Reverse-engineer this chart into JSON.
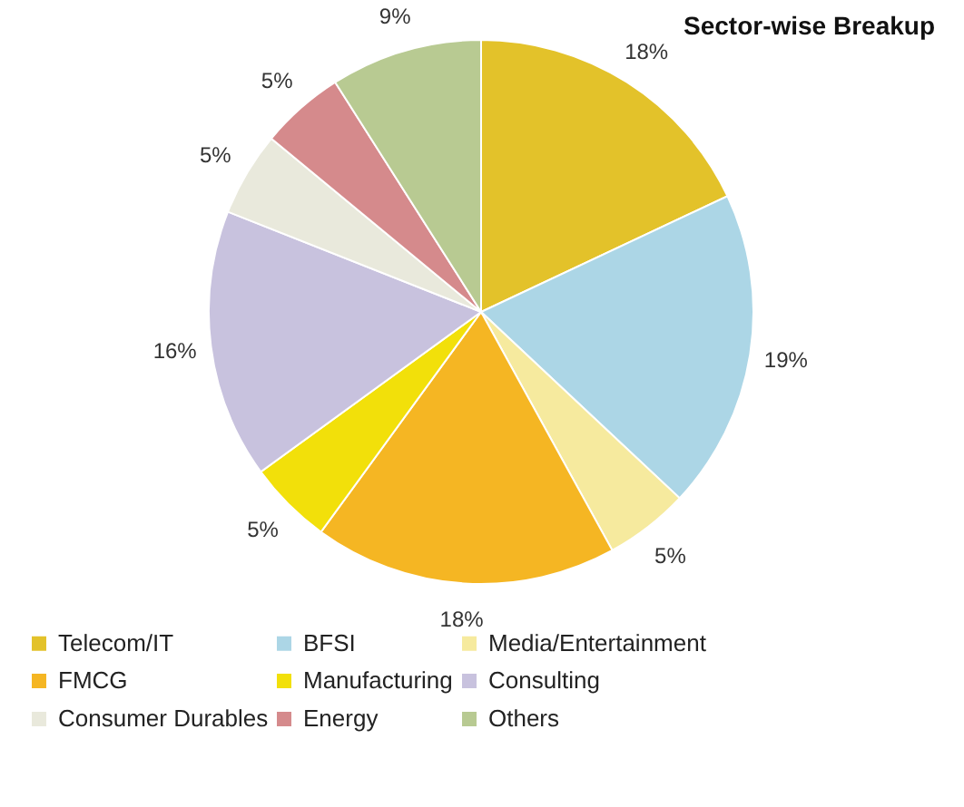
{
  "chart_data": {
    "type": "pie",
    "title": "Sector-wise Breakup",
    "categories": [
      "Telecom/IT",
      "BFSI",
      "Media/Entertainment",
      "FMCG",
      "Manufacturing",
      "Consulting",
      "Consumer Durables",
      "Energy",
      "Others"
    ],
    "values": [
      18,
      19,
      5,
      18,
      5,
      16,
      5,
      5,
      9
    ],
    "value_labels": [
      "18%",
      "19%",
      "5%",
      "18%",
      "5%",
      "16%",
      "5%",
      "5%",
      "9%"
    ],
    "colors": [
      "#e3c22a",
      "#acd6e6",
      "#f6ea9e",
      "#f5b623",
      "#f2e00a",
      "#c8c2de",
      "#e9e9dc",
      "#d58a8c",
      "#b8ca92"
    ],
    "legend": "bottom"
  }
}
